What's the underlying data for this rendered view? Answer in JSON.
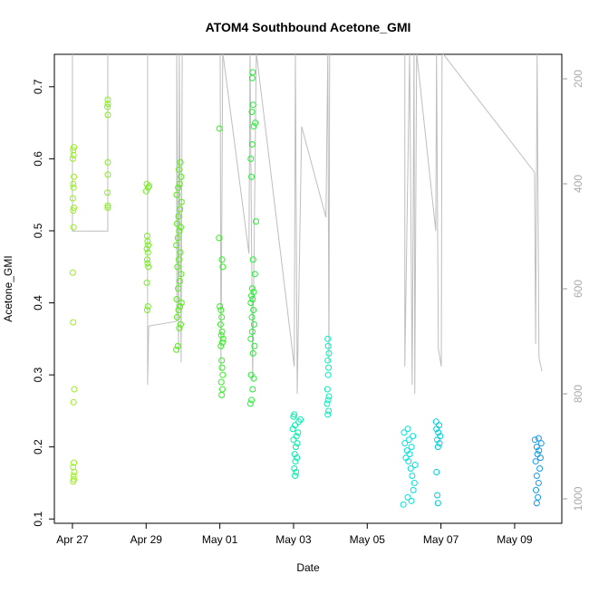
{
  "chart_data": {
    "type": "scatter",
    "title": "ATOM4 Southbound Acetone_GMI",
    "xlabel": "Date",
    "ylabel": "Acetone_GMI",
    "xlim": [
      -0.49,
      13.28
    ],
    "ylim": [
      0.094,
      0.745
    ],
    "y2lim": [
      1046.6,
      153.4
    ],
    "xticks": [
      {
        "value": 0,
        "label": "Apr 27"
      },
      {
        "value": 2,
        "label": "Apr 29"
      },
      {
        "value": 4,
        "label": "May 01"
      },
      {
        "value": 6,
        "label": "May 03"
      },
      {
        "value": 8,
        "label": "May 05"
      },
      {
        "value": 10,
        "label": "May 07"
      },
      {
        "value": 12,
        "label": "May 09"
      }
    ],
    "yticks": [
      0.1,
      0.2,
      0.3,
      0.4,
      0.5,
      0.6,
      0.7
    ],
    "y2ticks": [
      200,
      400,
      600,
      800,
      1000
    ],
    "series": [
      {
        "color": "#99ee22",
        "x": [
          0.02,
          0.04,
          0.03,
          0.05,
          0.02,
          0.04,
          0.03,
          0.05,
          0.02,
          0.01,
          0.03,
          0.02,
          0.04,
          0.01,
          0.03,
          0.02,
          0.04,
          0.01,
          0.03,
          0.02,
          0.04
        ],
        "values": [
          0.152,
          0.155,
          0.16,
          0.165,
          0.172,
          0.178,
          0.262,
          0.28,
          0.373,
          0.442,
          0.505,
          0.528,
          0.532,
          0.545,
          0.56,
          0.565,
          0.575,
          0.6,
          0.605,
          0.612,
          0.616
        ]
      },
      {
        "color": "#88ee22",
        "x": [
          0.96,
          0.96,
          0.95,
          0.96,
          0.96,
          0.96,
          0.95,
          0.96,
          0.96
        ],
        "values": [
          0.532,
          0.535,
          0.553,
          0.578,
          0.595,
          0.661,
          0.672,
          0.676,
          0.682
        ]
      },
      {
        "color": "#77ee22",
        "x": [
          2.03,
          2.05,
          2.02,
          2.06,
          2.04,
          2.03,
          2.05,
          2.02,
          2.06,
          2.04,
          2.03,
          2.0,
          2.05,
          2.08,
          2.02
        ],
        "values": [
          0.39,
          0.395,
          0.428,
          0.45,
          0.455,
          0.46,
          0.47,
          0.475,
          0.48,
          0.485,
          0.493,
          0.555,
          0.56,
          0.562,
          0.565
        ]
      },
      {
        "color": "#55ee11",
        "x": [
          2.82,
          2.86,
          2.9,
          2.94,
          2.84,
          2.88,
          2.92,
          2.96,
          2.83,
          2.87,
          2.91,
          2.95,
          2.85,
          2.89,
          2.93,
          2.82,
          2.86,
          2.9,
          2.94,
          2.84,
          2.88,
          2.92,
          2.96,
          2.83,
          2.87,
          2.91,
          2.95,
          2.89,
          2.93
        ],
        "values": [
          0.335,
          0.34,
          0.365,
          0.37,
          0.38,
          0.39,
          0.395,
          0.4,
          0.405,
          0.42,
          0.43,
          0.44,
          0.45,
          0.46,
          0.47,
          0.48,
          0.49,
          0.5,
          0.505,
          0.51,
          0.52,
          0.53,
          0.54,
          0.55,
          0.56,
          0.565,
          0.575,
          0.585,
          0.595
        ]
      },
      {
        "color": "#33ee22",
        "x": [
          4.05,
          4.07,
          4.04,
          4.08,
          4.06,
          4.05,
          4.03,
          4.07,
          4.09,
          4.04,
          4.06,
          4.02,
          4.05,
          4.03,
          4.0,
          4.08,
          4.06,
          3.98,
          3.99
        ],
        "values": [
          0.272,
          0.28,
          0.29,
          0.3,
          0.31,
          0.32,
          0.34,
          0.345,
          0.35,
          0.355,
          0.36,
          0.37,
          0.38,
          0.39,
          0.395,
          0.45,
          0.46,
          0.49,
          0.642
        ]
      },
      {
        "color": "#22ee33",
        "x": [
          4.83,
          4.86,
          4.89,
          4.92,
          4.85,
          4.9,
          4.94,
          4.84,
          4.88,
          4.93,
          4.87,
          4.91,
          4.84,
          4.89,
          4.86,
          4.92,
          4.88,
          4.95,
          4.9,
          4.98,
          4.86,
          4.84,
          4.88,
          4.92,
          4.96,
          4.87,
          4.9,
          4.88,
          4.89
        ],
        "values": [
          0.26,
          0.265,
          0.28,
          0.295,
          0.3,
          0.33,
          0.34,
          0.35,
          0.36,
          0.37,
          0.38,
          0.39,
          0.4,
          0.405,
          0.41,
          0.415,
          0.42,
          0.44,
          0.46,
          0.513,
          0.575,
          0.6,
          0.62,
          0.645,
          0.65,
          0.665,
          0.675,
          0.712,
          0.72
        ]
      },
      {
        "color": "#00eeaa",
        "x": [
          6.04,
          6.07,
          6.02,
          6.05,
          6.09,
          6.03,
          6.06,
          6.1,
          6.0,
          6.08,
          6.12,
          5.98,
          6.04,
          6.14,
          6.19,
          6.0,
          6.02
        ],
        "values": [
          0.16,
          0.165,
          0.17,
          0.18,
          0.185,
          0.19,
          0.2,
          0.205,
          0.21,
          0.215,
          0.22,
          0.225,
          0.23,
          0.235,
          0.238,
          0.242,
          0.245
        ]
      },
      {
        "color": "#00eebb",
        "x": [
          6.93,
          6.95,
          6.91,
          6.94,
          6.96,
          6.92,
          6.94,
          6.95,
          6.93,
          6.96,
          6.94,
          6.93
        ],
        "values": [
          0.245,
          0.25,
          0.26,
          0.265,
          0.27,
          0.28,
          0.3,
          0.31,
          0.32,
          0.33,
          0.34,
          0.35
        ]
      },
      {
        "color": "#00e0dd",
        "x": [
          8.98,
          9.2,
          9.1,
          9.25,
          9.28,
          9.22,
          9.18,
          9.3,
          9.12,
          9.05,
          9.15,
          9.08,
          9.2,
          9.02,
          9.13,
          9.24,
          9.0,
          9.1
        ],
        "values": [
          0.12,
          0.125,
          0.13,
          0.14,
          0.15,
          0.16,
          0.17,
          0.175,
          0.18,
          0.185,
          0.19,
          0.195,
          0.2,
          0.205,
          0.21,
          0.215,
          0.22,
          0.225
        ]
      },
      {
        "color": "#00ccdd",
        "x": [
          9.92,
          9.9,
          9.88,
          9.92,
          9.96,
          9.9,
          9.98,
          9.93,
          9.88,
          9.95,
          9.87
        ],
        "values": [
          0.122,
          0.133,
          0.165,
          0.2,
          0.205,
          0.21,
          0.215,
          0.22,
          0.225,
          0.23,
          0.235
        ]
      },
      {
        "color": "#1199ee",
        "x": [
          12.6,
          12.63,
          12.58,
          12.65,
          12.6,
          12.68,
          12.57,
          12.7,
          12.62,
          12.66,
          12.6,
          12.72,
          12.55,
          12.65
        ],
        "values": [
          0.122,
          0.13,
          0.14,
          0.15,
          0.16,
          0.17,
          0.18,
          0.185,
          0.19,
          0.195,
          0.2,
          0.205,
          0.21,
          0.212
        ]
      },
      {
        "type": "line",
        "axis": "y2",
        "color": "#bebebe",
        "x": [
          0,
          0,
          0.96,
          0.96,
          2.04,
          2.04,
          2.07,
          2.83,
          2.83,
          2.88,
          2.9,
          2.95,
          2.98,
          4.01,
          4.03,
          4.08,
          4.79,
          4.82,
          4.89,
          4.99,
          6.02,
          6.05,
          6.1,
          6.22,
          6.88,
          6.93,
          6.96,
          6.98,
          9.02,
          9.02,
          9.15,
          9.22,
          9.27,
          9.29,
          9.34,
          9.86,
          9.88,
          9.93,
          10.01,
          10.03,
          12.54,
          12.57,
          12.61,
          12.66,
          12.74
        ],
        "values": [
          150,
          490,
          490,
          150,
          150,
          783,
          671,
          662,
          150,
          722,
          150,
          740,
          150,
          150,
          757,
          150,
          533,
          150,
          774,
          150,
          748,
          150,
          800,
          291,
          464,
          150,
          740,
          150,
          150,
          748,
          150,
          783,
          150,
          800,
          150,
          490,
          150,
          714,
          748,
          150,
          378,
          705,
          150,
          731,
          757
        ]
      }
    ]
  }
}
